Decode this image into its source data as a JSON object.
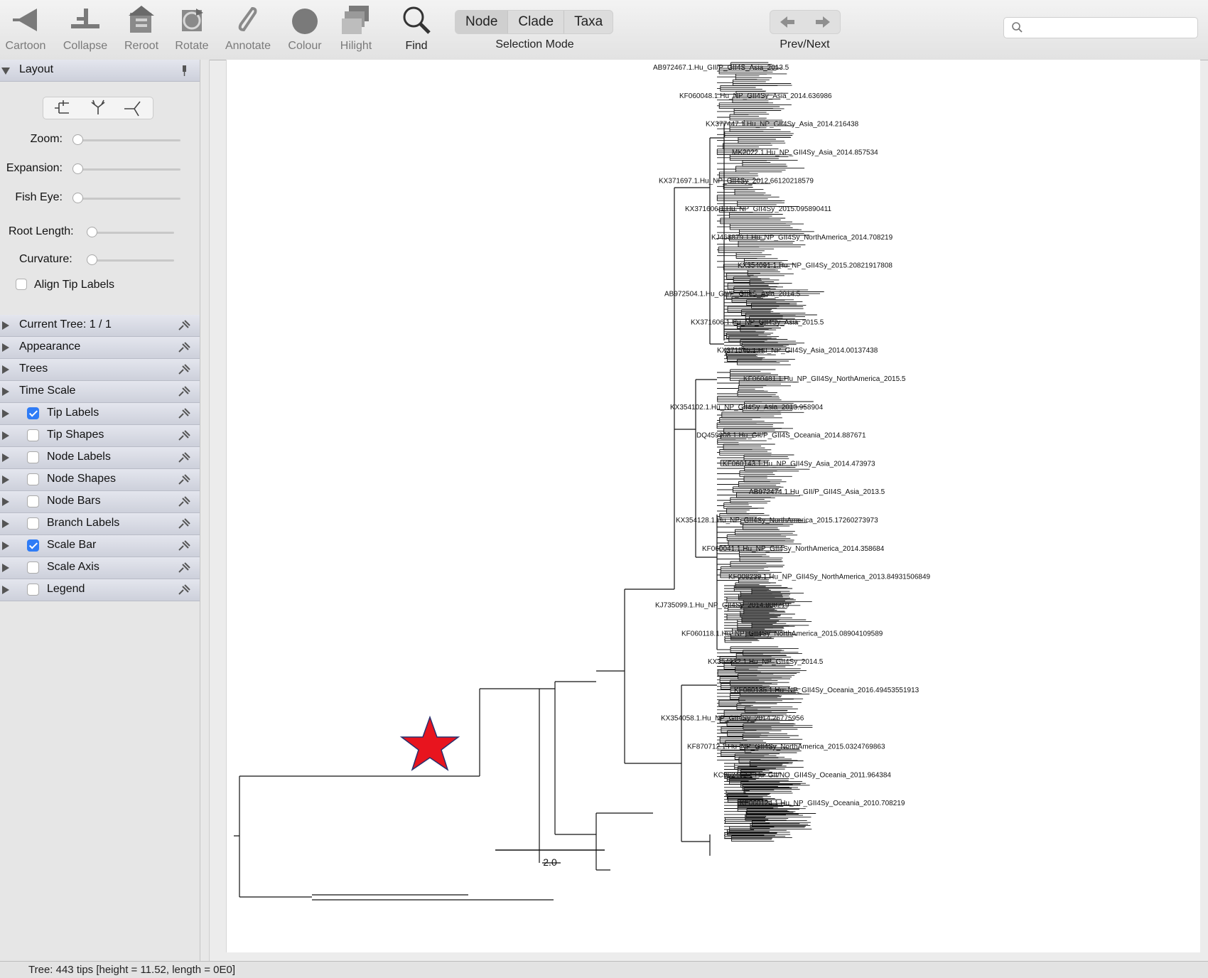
{
  "toolbar": {
    "buttons": [
      {
        "label": "Cartoon",
        "icon": "cartoon-icon"
      },
      {
        "label": "Collapse",
        "icon": "collapse-icon"
      },
      {
        "label": "Reroot",
        "icon": "reroot-icon"
      },
      {
        "label": "Rotate",
        "icon": "rotate-icon"
      },
      {
        "label": "Annotate",
        "icon": "annotate-icon"
      },
      {
        "label": "Colour",
        "icon": "colour-icon"
      },
      {
        "label": "Hilight",
        "icon": "hilight-icon"
      },
      {
        "label": "Find",
        "icon": "find-icon"
      }
    ],
    "selection_mode": {
      "options": [
        "Node",
        "Clade",
        "Taxa"
      ],
      "selected": "Node",
      "label": "Selection Mode"
    },
    "prev_next_label": "Prev/Next",
    "search": {
      "value": "",
      "placeholder": ""
    }
  },
  "sidebar": {
    "layout_panel": {
      "title": "Layout",
      "sliders": [
        {
          "label": "Zoom:",
          "value": 0
        },
        {
          "label": "Expansion:",
          "value": 0
        },
        {
          "label": "Fish Eye:",
          "value": 0
        },
        {
          "label": "Root Length:",
          "value": 0
        },
        {
          "label": "Curvature:",
          "value": 0
        }
      ],
      "align_tip_labels": {
        "label": "Align Tip Labels",
        "checked": false
      }
    },
    "panels": [
      {
        "label": "Current Tree: 1 / 1",
        "checkbox": null
      },
      {
        "label": "Appearance",
        "checkbox": null
      },
      {
        "label": "Trees",
        "checkbox": null
      },
      {
        "label": "Time Scale",
        "checkbox": null
      },
      {
        "label": "Tip Labels",
        "checkbox": true
      },
      {
        "label": "Tip Shapes",
        "checkbox": false
      },
      {
        "label": "Node Labels",
        "checkbox": false
      },
      {
        "label": "Node Shapes",
        "checkbox": false
      },
      {
        "label": "Node Bars",
        "checkbox": false
      },
      {
        "label": "Branch Labels",
        "checkbox": false
      },
      {
        "label": "Scale Bar",
        "checkbox": true
      },
      {
        "label": "Scale Axis",
        "checkbox": false
      },
      {
        "label": "Legend",
        "checkbox": false
      }
    ]
  },
  "tree": {
    "scale_bar_label": "2.0",
    "tip_labels": [
      "AB972467.1.Hu_GII/P_GII4S_Asia_2013.5",
      "KF060048.1.Hu_NP_GII4Sy_Asia_2014.636986",
      "KX377447.1.Hu_NP_GII4Sy_Asia_2014.216438",
      "MK2022.1.Hu_NP_GII4Sy_Asia_2014.857534",
      "KX371697.1.Hu_NP_GII4Sy_2012.66120218579",
      "KX371606.1.Hu_NP_GII4Sy_2015.095890411",
      "KJ468879.1.Hu_NP_GII4Sy_NorthAmerica_2014.708219",
      "KX354091.1.Hu_NP_GII4Sy_2015.20821917808",
      "AB972504.1.Hu_GII/P_GII4S_Asia_2014.5",
      "KX371606.1.Hu_NP_GII4Sy_Asia_2015.5",
      "KX371546.1.Hu_NP_GII4Sy_Asia_2014.00137438",
      "KF060481.1.Hu_NP_GII4Sy_NorthAmerica_2015.5",
      "KX354102.1.Hu_NP_GII4Sy_Asia_2013.958904",
      "DQ459908.1.Hu_GII/P_GII4S_Oceania_2014.887671",
      "KF060143.1.Hu_NP_GII4Sy_Asia_2014.473973",
      "AB972474.1.Hu_GII/P_GII4S_Asia_2013.5",
      "KX354128.1.Hu_NP_GII4Sy_NorthAmerica_2015.17260273973",
      "KF060041.1.Hu_NP_GII4Sy_NorthAmerica_2014.358684",
      "KF008239.1.Hu_NP_GII4Sy_NorthAmerica_2013.84931506849",
      "KJ735099.1.Hu_NP_GII4Sy_2014.808219",
      "KF060118.1.Hu_NP_GII4Sy_NorthAmerica_2015.08904109589",
      "KX354932.1.Hu_NP_GII4Sy_2014.5",
      "KF060135.1.Hu_NP_GII4Sy_Oceania_2016.49453551913",
      "KX354058.1.Hu_NP_GII4Sy_2014.26775956",
      "KF870712.1.Hu_NP_GII4Sy_NorthAmerica_2015.0324769863",
      "KC962462.1.Hu_GII/NO_GII4Sy_Oceania_2011.964384",
      "KF060124.1.Hu_NP_GII4Sy_Oceania_2010.708219"
    ]
  },
  "status_text": "Tree: 443 tips [height = 11.52, length = 0E0]"
}
